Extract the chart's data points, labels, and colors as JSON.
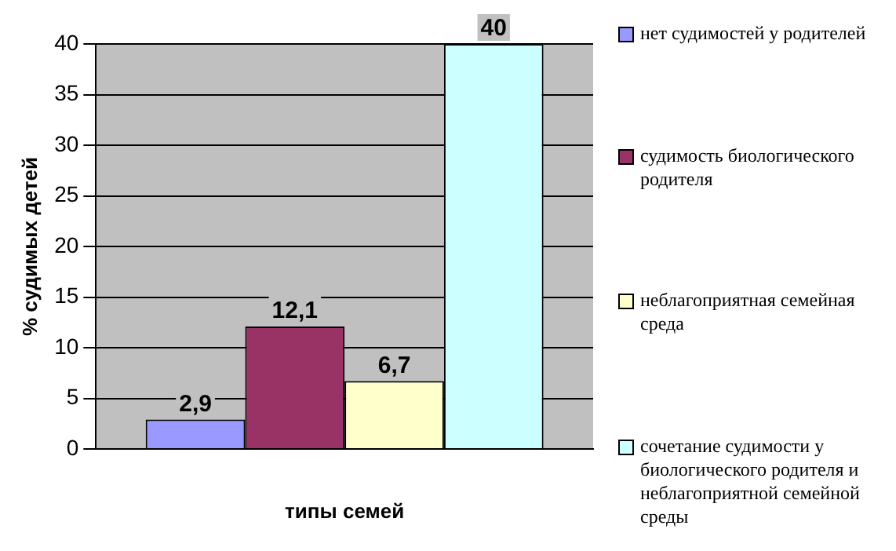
{
  "chart_data": {
    "type": "bar",
    "xlabel": "типы семей",
    "ylabel": "% судимых детей",
    "categories": [
      null
    ],
    "series": [
      {
        "name": "нет судимостей у родителей",
        "color": "#9999ff",
        "values": [
          2.9
        ],
        "value_labels": [
          "2,9"
        ]
      },
      {
        "name": "судимость биологического родителя",
        "color": "#993366",
        "values": [
          12.1
        ],
        "value_labels": [
          "12,1"
        ]
      },
      {
        "name": "неблагоприятная семейная среда",
        "color": "#ffffcc",
        "values": [
          6.7
        ],
        "value_labels": [
          "6,7"
        ]
      },
      {
        "name": "сочетание судимости у биологического родителя и неблагоприятной семейной среды",
        "color": "#ccffff",
        "values": [
          40
        ],
        "value_labels": [
          "40"
        ]
      }
    ],
    "ylim": [
      0,
      40
    ],
    "yticks": [
      0,
      5,
      10,
      15,
      20,
      25,
      30,
      35,
      40
    ],
    "grid": "y",
    "legend": "right"
  }
}
